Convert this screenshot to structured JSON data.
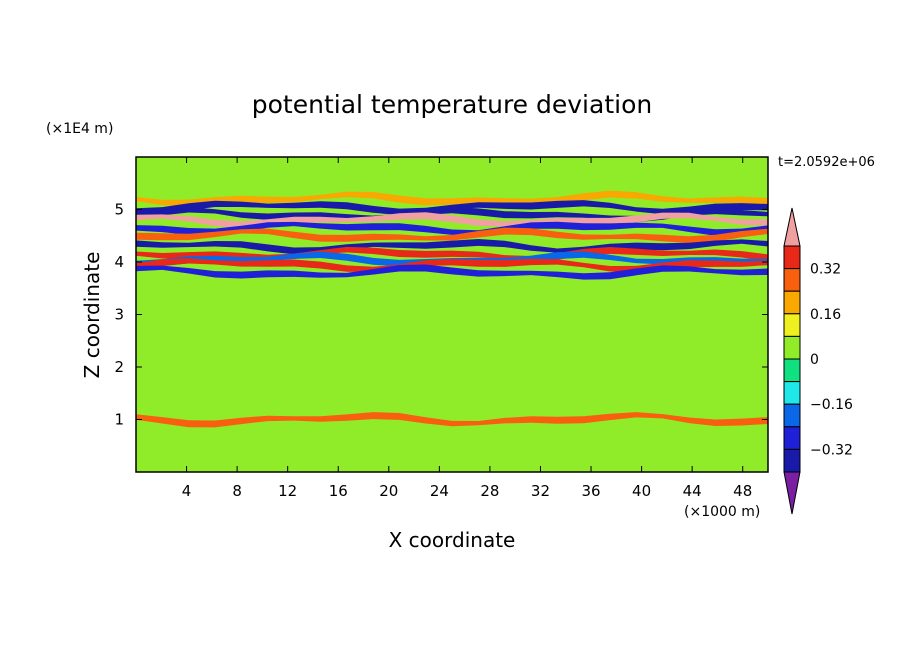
{
  "chart_data": {
    "type": "heatmap",
    "title": "potential temperature deviation",
    "xlabel": "X coordinate",
    "ylabel": "Z coordinate",
    "x_unit": "(×1000 m)",
    "y_unit": "(×1E4 m)",
    "time_label": "t=2.0592e+06",
    "xlim": [
      0,
      50
    ],
    "ylim": [
      0,
      6
    ],
    "x_ticks": [
      "4",
      "8",
      "12",
      "16",
      "20",
      "24",
      "28",
      "32",
      "36",
      "40",
      "44",
      "48"
    ],
    "y_ticks": [
      "1",
      "2",
      "3",
      "4",
      "5"
    ],
    "colorbar": {
      "levels": [
        -0.48,
        -0.4,
        -0.32,
        -0.24,
        -0.16,
        -0.08,
        0,
        0.08,
        0.16,
        0.24,
        0.32,
        0.4
      ],
      "labels": [
        "0.32",
        "0.16",
        "0",
        "−0.16",
        "−0.32"
      ],
      "colors": [
        "#7b1fa2",
        "#1a1aa8",
        "#2020d8",
        "#0a68e8",
        "#20e8e8",
        "#10e080",
        "#90ec28",
        "#f0f020",
        "#f8a800",
        "#f86010",
        "#e82818",
        "#f0a0a0"
      ]
    },
    "bands": [
      {
        "z": 5.2,
        "value": 0.2
      },
      {
        "z": 5.05,
        "value": -0.36
      },
      {
        "z": 4.9,
        "value": -0.4
      },
      {
        "z": 4.8,
        "value": 0.4
      },
      {
        "z": 4.65,
        "value": -0.28
      },
      {
        "z": 4.5,
        "value": 0.28
      },
      {
        "z": 4.3,
        "value": -0.36
      },
      {
        "z": 4.15,
        "value": 0.32
      },
      {
        "z": 4.05,
        "value": -0.2
      },
      {
        "z": 3.95,
        "value": 0.36
      },
      {
        "z": 3.8,
        "value": -0.32
      },
      {
        "z": 1.0,
        "value": 0.24
      }
    ]
  }
}
